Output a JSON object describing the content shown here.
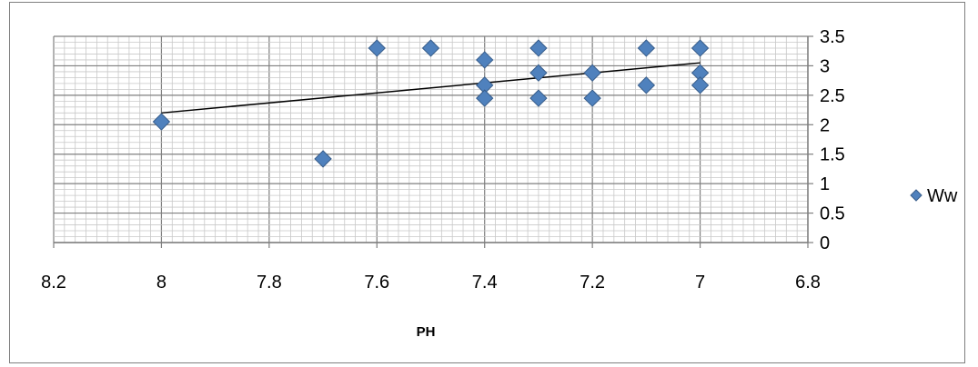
{
  "chart_data": {
    "type": "scatter",
    "title": "",
    "xlabel": "PH",
    "ylabel": "",
    "x_reversed": true,
    "xlim": [
      6.8,
      8.2
    ],
    "ylim": [
      0,
      3.5
    ],
    "x_ticks": [
      "8.2",
      "8",
      "7.8",
      "7.6",
      "7.4",
      "7.2",
      "7",
      "6.8"
    ],
    "y_ticks": [
      "0",
      "0.5",
      "1",
      "1.5",
      "2",
      "2.5",
      "3",
      "3.5"
    ],
    "x_tick_values": [
      8.2,
      8,
      7.8,
      7.6,
      7.4,
      7.2,
      7,
      6.8
    ],
    "y_tick_values": [
      0,
      0.5,
      1,
      1.5,
      2,
      2.5,
      3,
      3.5
    ],
    "grid": true,
    "legend": "right",
    "series": [
      {
        "name": "Ww",
        "color": "#4f81bd",
        "marker": "diamond",
        "points": [
          [
            8.0,
            2.05
          ],
          [
            7.7,
            1.42
          ],
          [
            7.6,
            3.3
          ],
          [
            7.5,
            3.3
          ],
          [
            7.4,
            3.1
          ],
          [
            7.4,
            2.67
          ],
          [
            7.4,
            2.45
          ],
          [
            7.3,
            3.3
          ],
          [
            7.3,
            2.88
          ],
          [
            7.3,
            2.45
          ],
          [
            7.2,
            2.88
          ],
          [
            7.2,
            2.45
          ],
          [
            7.1,
            3.3
          ],
          [
            7.1,
            2.67
          ],
          [
            7.0,
            3.3
          ],
          [
            7.0,
            2.88
          ],
          [
            7.0,
            2.67
          ]
        ]
      }
    ],
    "trendline": {
      "type": "linear",
      "color": "#000000",
      "x_range": [
        8.0,
        7.0
      ],
      "y_range": [
        2.2,
        3.05
      ]
    }
  }
}
